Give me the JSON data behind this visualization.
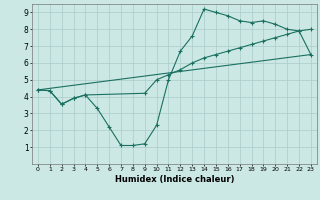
{
  "title": "",
  "xlabel": "Humidex (Indice chaleur)",
  "ylabel": "",
  "xlim": [
    -0.5,
    23.5
  ],
  "ylim": [
    0,
    9.5
  ],
  "xticks": [
    0,
    1,
    2,
    3,
    4,
    5,
    6,
    7,
    8,
    9,
    10,
    11,
    12,
    13,
    14,
    15,
    16,
    17,
    18,
    19,
    20,
    21,
    22,
    23
  ],
  "yticks": [
    1,
    2,
    3,
    4,
    5,
    6,
    7,
    8,
    9
  ],
  "bg_color": "#cce8e4",
  "grid_color": "#aaccca",
  "line_color": "#1a7060",
  "line1_x": [
    0,
    1,
    2,
    3,
    4,
    5,
    6,
    7,
    8,
    9,
    10,
    11,
    12,
    13,
    14,
    15,
    16,
    17,
    18,
    19,
    20,
    21,
    22,
    23
  ],
  "line1_y": [
    4.4,
    4.35,
    3.55,
    3.9,
    4.1,
    3.3,
    2.2,
    1.1,
    1.1,
    1.2,
    2.3,
    5.0,
    6.7,
    7.6,
    9.2,
    9.0,
    8.8,
    8.5,
    8.4,
    8.5,
    8.3,
    8.0,
    7.9,
    6.5
  ],
  "line2_x": [
    0,
    1,
    2,
    3,
    4,
    9,
    10,
    11,
    12,
    13,
    14,
    15,
    16,
    17,
    18,
    19,
    20,
    21,
    22,
    23
  ],
  "line2_y": [
    4.4,
    4.35,
    3.55,
    3.9,
    4.1,
    4.2,
    5.0,
    5.3,
    5.6,
    6.0,
    6.3,
    6.5,
    6.7,
    6.9,
    7.1,
    7.3,
    7.5,
    7.7,
    7.9,
    8.0
  ],
  "line3_x": [
    0,
    23
  ],
  "line3_y": [
    4.4,
    6.5
  ]
}
